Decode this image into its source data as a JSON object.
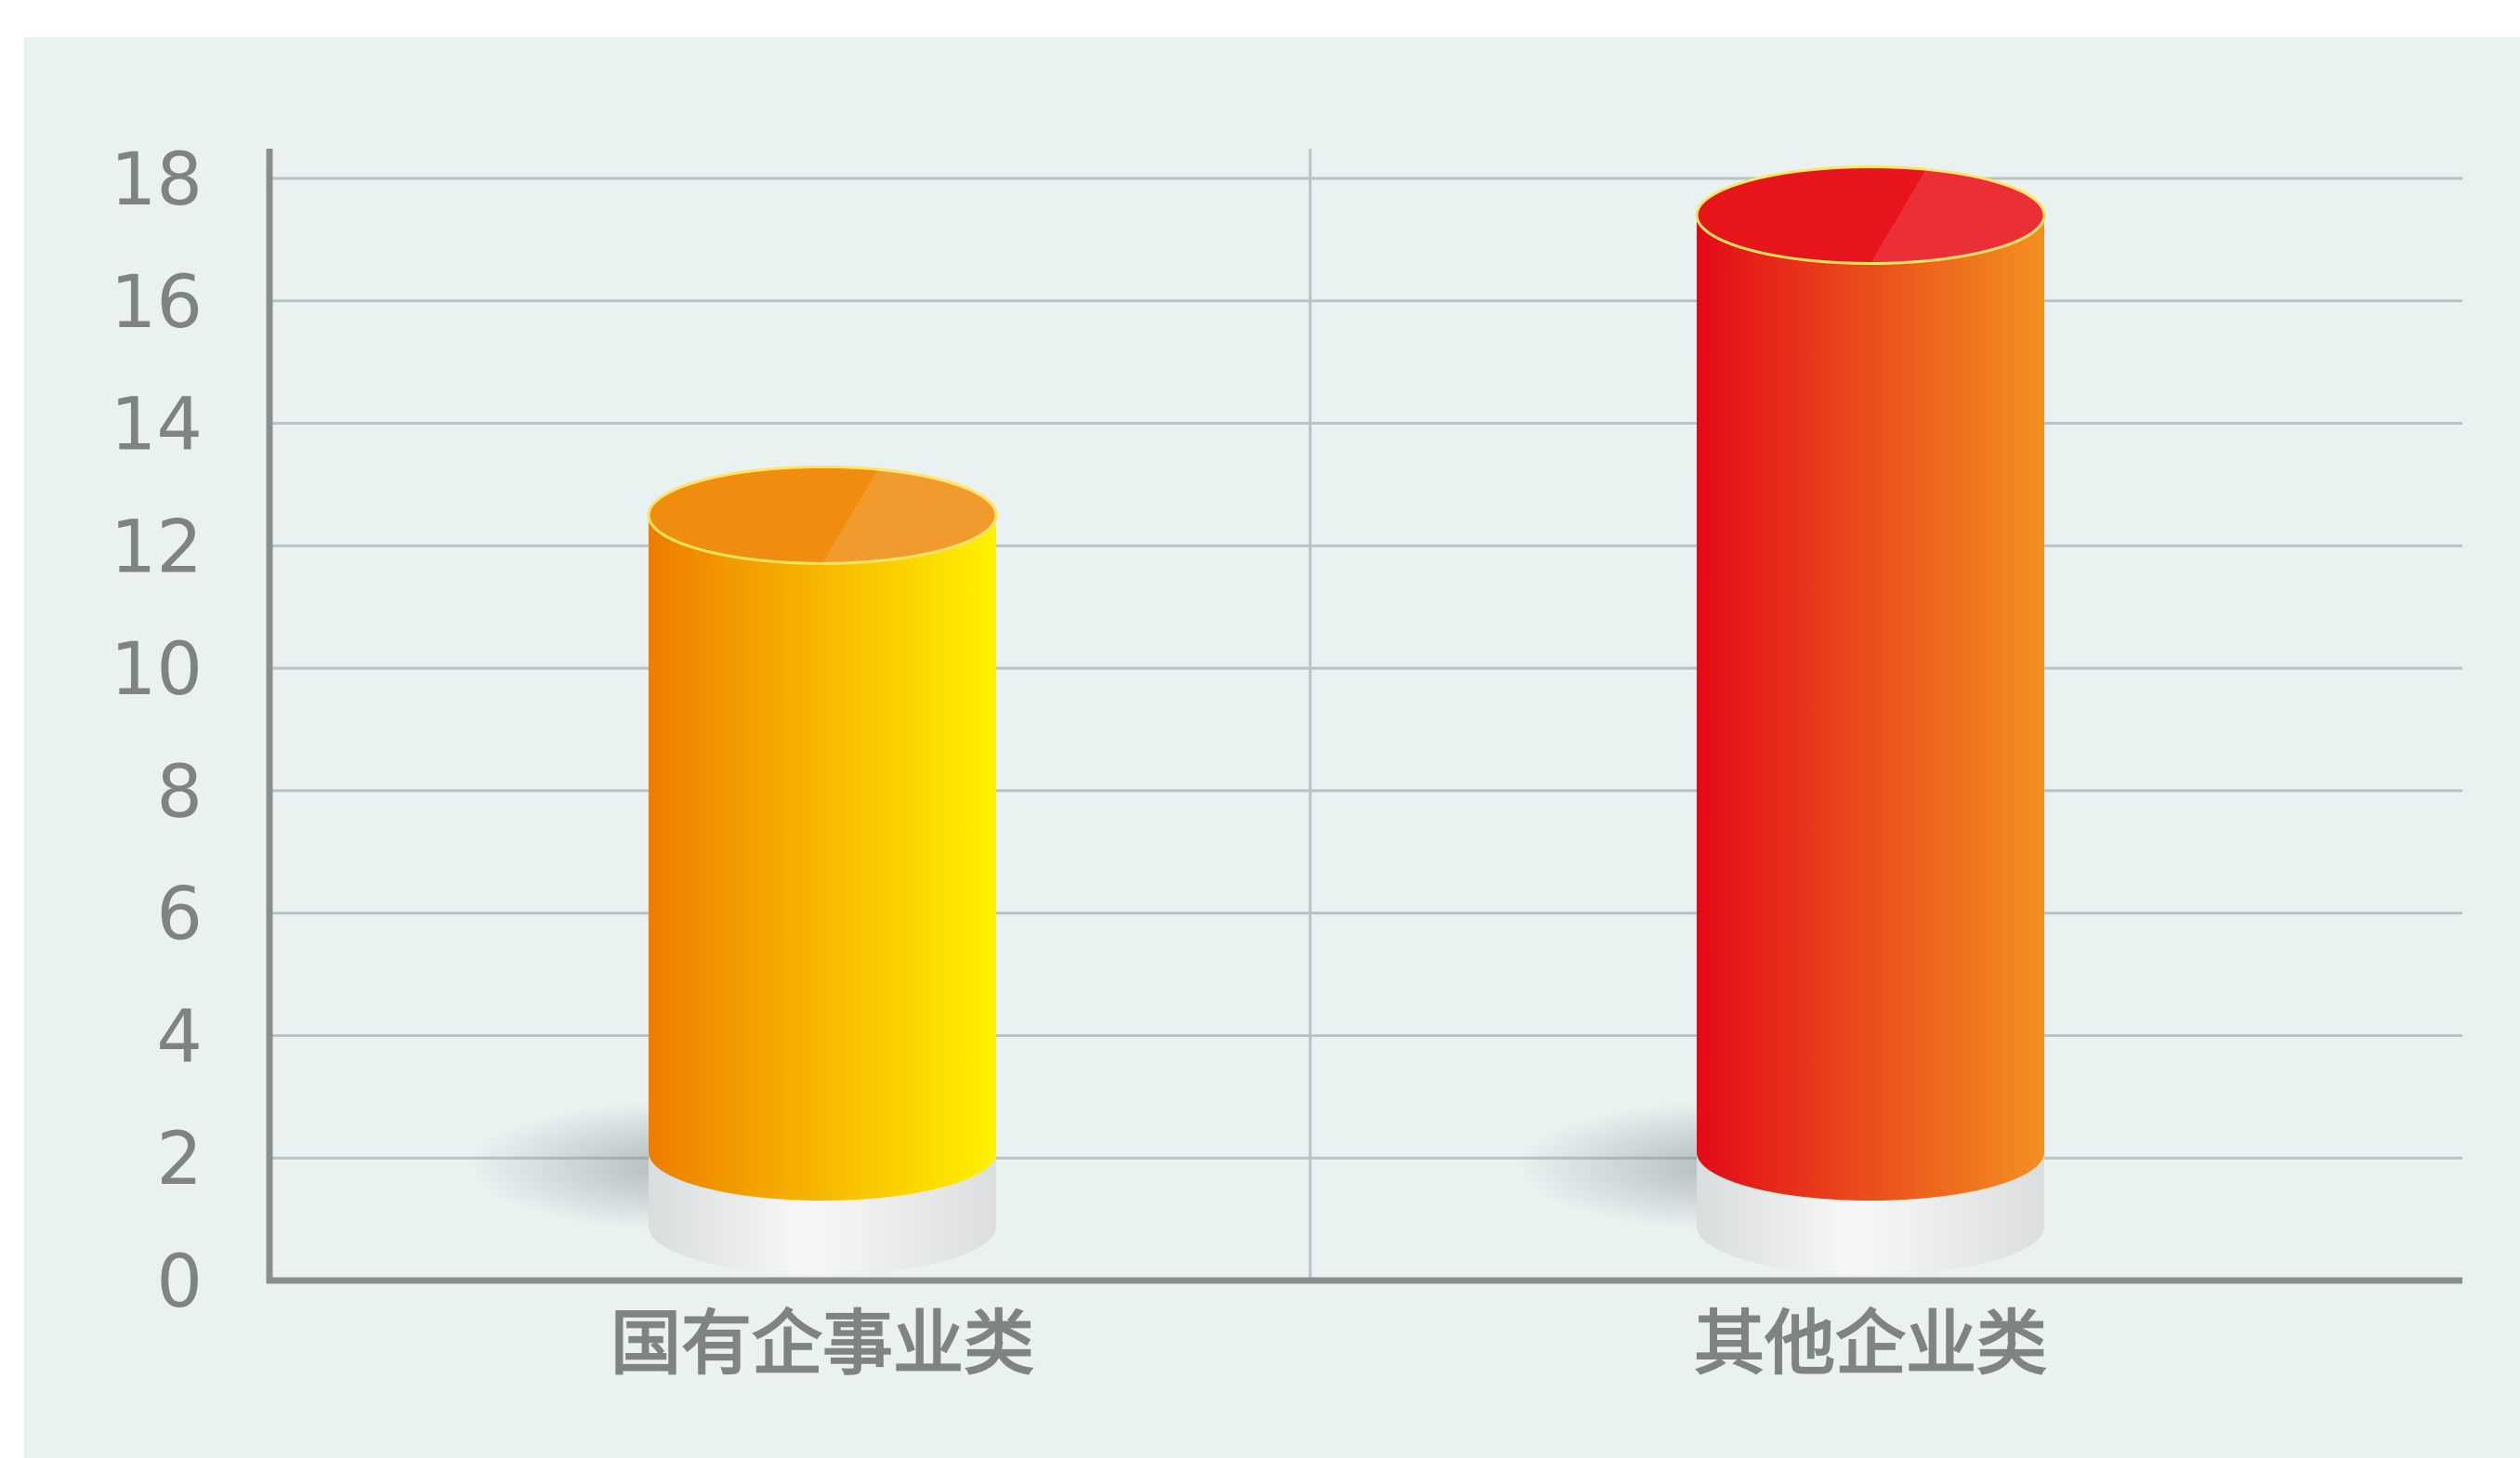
{
  "chart_data": {
    "type": "bar",
    "categories": [
      "国有企事业类",
      "其他企业类"
    ],
    "values": [
      12.5,
      17.4
    ],
    "ylim": [
      0,
      18
    ],
    "yticks": [
      0,
      2,
      4,
      6,
      8,
      10,
      12,
      14,
      16,
      18
    ],
    "grid": true,
    "style": "3d-cylinder",
    "colors": [
      {
        "side_left": "#ee7d00",
        "side_right": "#fff200",
        "top": "#f08c10"
      },
      {
        "side_left": "#e30a17",
        "side_right": "#f29120",
        "top": "#e8141b"
      }
    ]
  },
  "colors": {
    "panel": "#e9f2f1",
    "grid": "#b9c3c3",
    "axis": "#8a8e8e",
    "label": "#7f8383",
    "pedestal": "#f1f1f1"
  }
}
